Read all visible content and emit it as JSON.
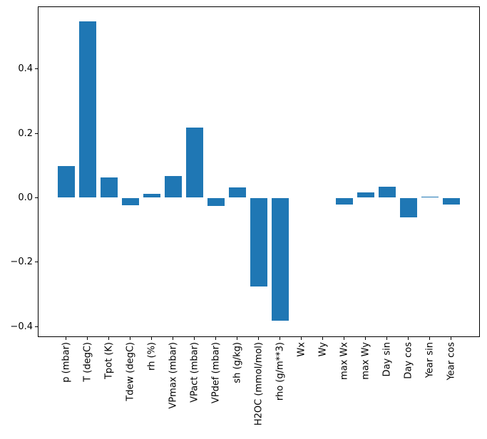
{
  "chart_data": {
    "type": "bar",
    "title": "",
    "xlabel": "",
    "ylabel": "",
    "grid": false,
    "legend": "none",
    "background": "#ffffff",
    "bar_color": "#1f77b4",
    "axis_color": "#000000",
    "text_color": "#000000",
    "ylim": [
      -0.432,
      0.594
    ],
    "yticks": [
      {
        "value": 0.4,
        "label": "0.4"
      },
      {
        "value": 0.2,
        "label": "0.2"
      },
      {
        "value": 0.0,
        "label": "0.0"
      },
      {
        "value": -0.2,
        "label": "−0.2"
      },
      {
        "value": -0.4,
        "label": "−0.4"
      }
    ],
    "categories": [
      "p (mbar)",
      "T (degC)",
      "Tpot (K)",
      "Tdew (degC)",
      "rh (%)",
      "VPmax (mbar)",
      "VPact (mbar)",
      "VPdef (mbar)",
      "sh (g/kg)",
      "H2OC (mmol/mol)",
      "rho (g/m**3)",
      "Wx",
      "Wy",
      "max Wx",
      "max Wy",
      "Day sin",
      "Day cos",
      "Year sin",
      "Year cos"
    ],
    "values": [
      0.099,
      0.548,
      0.064,
      -0.024,
      0.013,
      0.067,
      0.218,
      -0.026,
      0.032,
      -0.275,
      -0.381,
      0.0,
      0.0,
      -0.02,
      0.017,
      0.034,
      -0.062,
      0.003,
      -0.021
    ]
  }
}
